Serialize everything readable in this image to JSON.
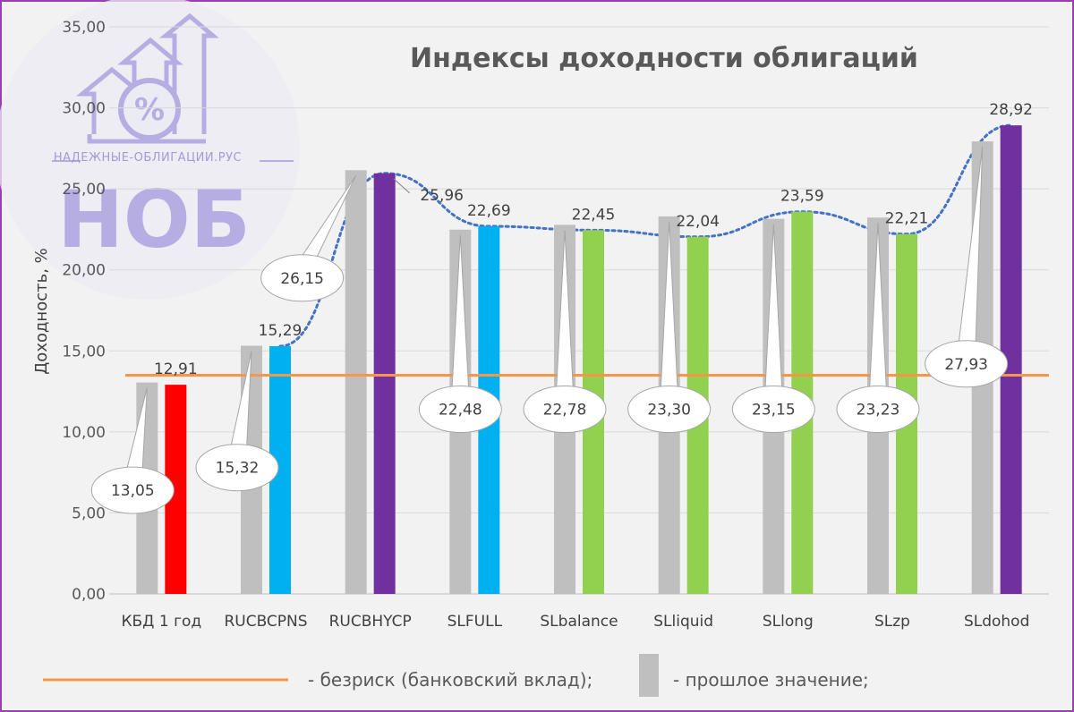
{
  "watermark": {
    "site": "НАДЕЖНЫЕ-ОБЛИГАЦИИ.РУС",
    "brand": "НОБ"
  },
  "legend": {
    "risk_free_label": "- безриск (банковский вклад);",
    "previous_label": "- прошлое значение;"
  },
  "colors": {
    "previous": "#bfbfbf",
    "risk_free": "#f79646",
    "trend": "#4472c4",
    "red": "#ff0000",
    "blue": "#00b0f0",
    "purple": "#7030a0",
    "green": "#92d050"
  },
  "chart_data": {
    "type": "bar",
    "title": "Индексы доходности облигаций",
    "ylabel": "Доходность, %",
    "ylim": [
      0,
      35
    ],
    "yticks": [
      "0,00",
      "5,00",
      "10,00",
      "15,00",
      "20,00",
      "25,00",
      "30,00",
      "35,00"
    ],
    "categories": [
      "КБД 1 год",
      "RUCBCPNS",
      "RUCBHYCP",
      "SLFULL",
      "SLbalance",
      "SLliquid",
      "SLlong",
      "SLzp",
      "SLdohod"
    ],
    "series": [
      {
        "name": "прошлое значение",
        "values": [
          13.05,
          15.32,
          26.15,
          22.48,
          22.78,
          23.3,
          23.15,
          23.23,
          27.93
        ],
        "labels": [
          "13,05",
          "15,32",
          "26,15",
          "22,48",
          "22,78",
          "23,30",
          "23,15",
          "23,23",
          "27,93"
        ]
      },
      {
        "values": [
          12.91,
          15.29,
          25.96,
          22.69,
          22.45,
          22.04,
          23.59,
          22.21,
          28.92
        ],
        "labels": [
          "12,91",
          "15,29",
          "25,96",
          "22,69",
          "22,45",
          "22,04",
          "23,59",
          "22,21",
          "28,92"
        ],
        "colors": [
          "red",
          "blue",
          "purple",
          "blue",
          "green",
          "green",
          "green",
          "green",
          "purple"
        ]
      }
    ],
    "risk_free_rate": 13.5,
    "trend": "dotted smooth line over current values (RUCBCPNS–SLdohod)",
    "grid": true
  }
}
